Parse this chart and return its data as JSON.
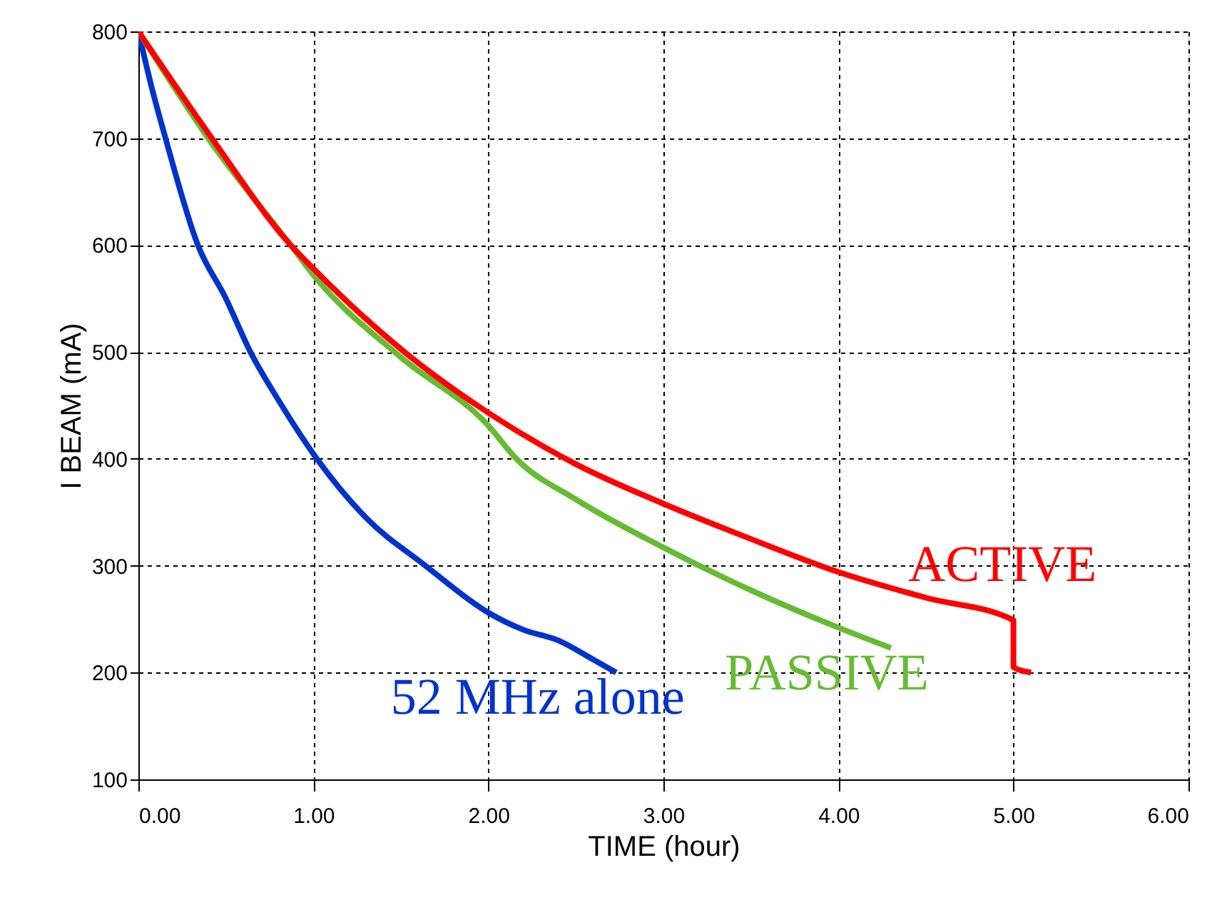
{
  "chart_data": {
    "type": "line",
    "xlabel": "TIME (hour)",
    "ylabel": "I BEAM (mA)",
    "xlim": [
      0,
      6
    ],
    "ylim": [
      100,
      800
    ],
    "xticks": [
      {
        "value": 0,
        "label": "0.00"
      },
      {
        "value": 1,
        "label": "1.00"
      },
      {
        "value": 2,
        "label": "2.00"
      },
      {
        "value": 3,
        "label": "3.00"
      },
      {
        "value": 4,
        "label": "4.00"
      },
      {
        "value": 5,
        "label": "5.00"
      },
      {
        "value": 6,
        "label": "6.00"
      }
    ],
    "yticks": [
      100,
      200,
      300,
      400,
      500,
      600,
      700,
      800
    ],
    "grid": true,
    "legend": false,
    "line_style": "solid",
    "marker": "none",
    "series": [
      {
        "name": "52 MHz alone",
        "color": "#0033cc",
        "x": [
          0,
          0.08,
          0.155,
          0.34,
          0.5,
          0.64,
          0.8,
          1.02,
          1.3,
          1.64,
          2.0,
          2.2,
          2.4,
          2.6,
          2.73
        ],
        "values": [
          800,
          745,
          700,
          600,
          550,
          500,
          455,
          400,
          345,
          300,
          256,
          240,
          230,
          212,
          200
        ]
      },
      {
        "name": "PASSIVE",
        "color": "#66bb33",
        "x": [
          0,
          0.42,
          0.87,
          1.0,
          1.5,
          2.0,
          2.16,
          2.5,
          3.0,
          3.5,
          4.0,
          4.3
        ],
        "values": [
          800,
          695,
          600,
          572,
          495,
          431,
          400,
          362,
          317,
          277,
          242,
          223
        ]
      },
      {
        "name": "ACTIVE",
        "color": "#ff0000",
        "x": [
          0,
          0.42,
          0.87,
          1.0,
          1.52,
          2.0,
          2.5,
          3.0,
          3.5,
          4.0,
          4.5,
          5.0,
          5.0,
          5.1
        ],
        "values": [
          800,
          700,
          600,
          578,
          500,
          443,
          395,
          358,
          325,
          294,
          270,
          249,
          205,
          200
        ]
      }
    ]
  }
}
